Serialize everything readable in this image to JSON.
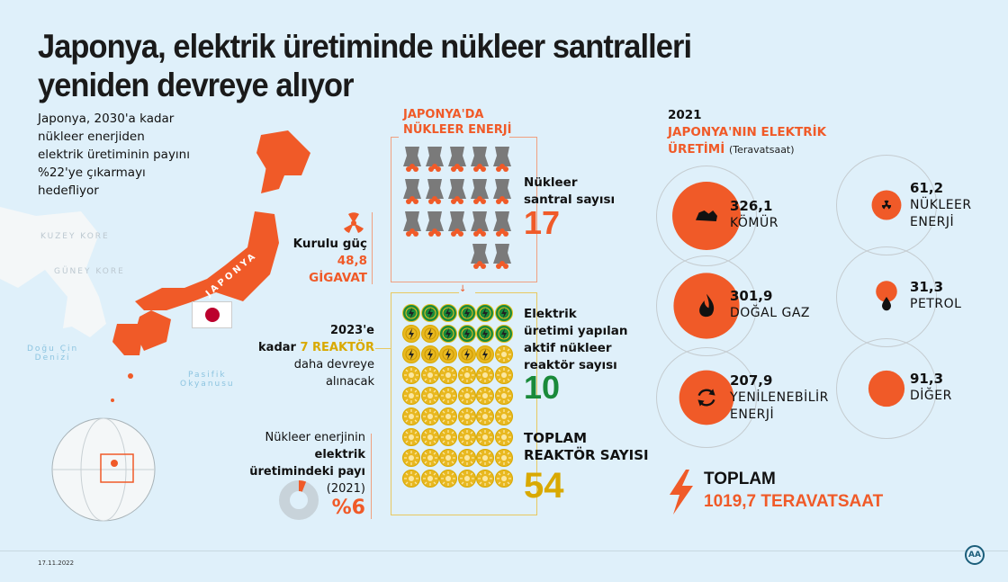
{
  "title": "Japonya, elektrik üretiminde nükleer santralleri yeniden devreye alıyor",
  "title_lines": [
    "Japonya, elektrik üretiminde nükleer santralleri",
    "yeniden devreye alıyor"
  ],
  "subtitle": [
    "Japonya, 2030'a kadar",
    "nükleer enerjiden",
    "elektrik üretiminin payını",
    "%22'ye çıkarmayı",
    "hedefliyor"
  ],
  "map": {
    "japan_label": "JAPONYA",
    "north_korea": "KUZEY KORE",
    "south_korea": "GÜNEY KORE",
    "east_china_sea": [
      "Doğu Çin",
      "Denizi"
    ],
    "pacific": [
      "Pasifik",
      "Okyanusu"
    ]
  },
  "nuclear": {
    "heading": [
      "JAPONYA'DA",
      "NÜKLEER ENERJİ"
    ],
    "plants_label": [
      "Nükleer",
      "santral sayısı"
    ],
    "plants_count": "17",
    "plants": 17,
    "capacity_label": "Kurulu güç",
    "capacity_value": "48,8",
    "capacity_unit": "GİGAVAT",
    "active_label": [
      "Elektrik",
      "üretimi yapılan",
      "aktif nükleer",
      "reaktör sayısı"
    ],
    "active_count": "10",
    "active": 10,
    "planned_line1": "2023'e",
    "planned_prefix": "kadar ",
    "planned_highlight": "7 REAKTÖR",
    "planned_line3": "daha devreye",
    "planned_line4": "alınacak",
    "planned": 7,
    "total_label": [
      "TOPLAM",
      "REAKTÖR SAYISI"
    ],
    "total_count": "54",
    "total": 54,
    "share_label": [
      "Nükleer enerjinin",
      "elektrik",
      "üretimindeki payı",
      "(2021)"
    ],
    "share_value": "%6",
    "share_percent": 6
  },
  "production": {
    "year": "2021",
    "heading": [
      "JAPONYA'NIN ELEKTRİK",
      "ÜRETİMİ"
    ],
    "unit": "(Teravatsaat)",
    "items": [
      {
        "value": "326,1",
        "label": [
          "KÖMÜR"
        ],
        "icon": "coal-icon",
        "twh": 326.1
      },
      {
        "value": "61,2",
        "label": [
          "NÜKLEER",
          "ENERJİ"
        ],
        "icon": "radiation-icon",
        "twh": 61.2
      },
      {
        "value": "301,9",
        "label": [
          "DOĞAL GAZ"
        ],
        "icon": "flame-icon",
        "twh": 301.9
      },
      {
        "value": "31,3",
        "label": [
          "PETROL"
        ],
        "icon": "oil-drop-icon",
        "twh": 31.3
      },
      {
        "value": "207,9",
        "label": [
          "YENİLENEBİLİR",
          "ENERJİ"
        ],
        "icon": "recycle-icon",
        "twh": 207.9
      },
      {
        "value": "91,3",
        "label": [
          "DİĞER"
        ],
        "icon": "",
        "twh": 91.3
      }
    ],
    "total_label": "TOPLAM",
    "total_value": "1019,7 TERAVATSAAT"
  },
  "footer": {
    "date": "17.11.2022",
    "logo": "AA"
  },
  "colors": {
    "background": "#dff0fa",
    "orange": "#f05a28",
    "green": "#1a8a3a",
    "yellow": "#d9a900",
    "gray": "#7a7a7a"
  }
}
